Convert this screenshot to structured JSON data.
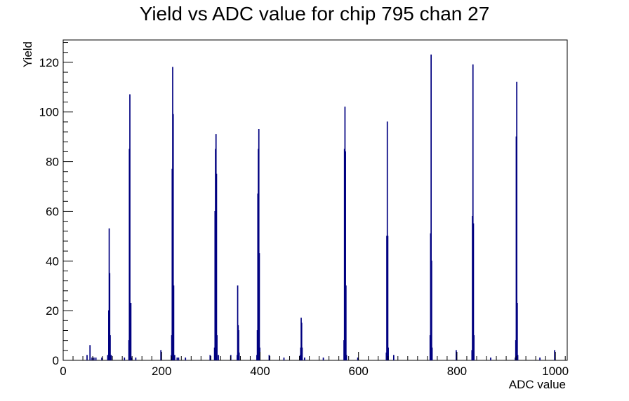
{
  "chart_data": {
    "type": "bar",
    "title": "Yield vs ADC value for chip 795 chan 27",
    "xlabel": "ADC value",
    "ylabel": "Yield",
    "xlim": [
      0,
      1024
    ],
    "ylim": [
      0,
      129
    ],
    "xticks": [
      0,
      200,
      400,
      600,
      800,
      1000
    ],
    "yticks": [
      0,
      20,
      40,
      60,
      80,
      100,
      120
    ],
    "grid": false,
    "legend": "none",
    "color": "#000080",
    "bins": [
      {
        "x": 48,
        "y": 2
      },
      {
        "x": 54,
        "y": 6
      },
      {
        "x": 58,
        "y": 1
      },
      {
        "x": 62,
        "y": 1
      },
      {
        "x": 66,
        "y": 1
      },
      {
        "x": 78,
        "y": 1
      },
      {
        "x": 90,
        "y": 2
      },
      {
        "x": 92,
        "y": 20
      },
      {
        "x": 93,
        "y": 53
      },
      {
        "x": 94,
        "y": 35
      },
      {
        "x": 95,
        "y": 10
      },
      {
        "x": 97,
        "y": 2
      },
      {
        "x": 124,
        "y": 1
      },
      {
        "x": 133,
        "y": 8
      },
      {
        "x": 134,
        "y": 85
      },
      {
        "x": 135,
        "y": 107
      },
      {
        "x": 136,
        "y": 15
      },
      {
        "x": 137,
        "y": 23
      },
      {
        "x": 139,
        "y": 1
      },
      {
        "x": 147,
        "y": 1
      },
      {
        "x": 198,
        "y": 4
      },
      {
        "x": 219,
        "y": 2
      },
      {
        "x": 220,
        "y": 10
      },
      {
        "x": 221,
        "y": 77
      },
      {
        "x": 222,
        "y": 118
      },
      {
        "x": 223,
        "y": 99
      },
      {
        "x": 224,
        "y": 30
      },
      {
        "x": 226,
        "y": 2
      },
      {
        "x": 231,
        "y": 1
      },
      {
        "x": 234,
        "y": 1
      },
      {
        "x": 248,
        "y": 1
      },
      {
        "x": 298,
        "y": 2
      },
      {
        "x": 307,
        "y": 5
      },
      {
        "x": 308,
        "y": 60
      },
      {
        "x": 309,
        "y": 85
      },
      {
        "x": 310,
        "y": 91
      },
      {
        "x": 311,
        "y": 75
      },
      {
        "x": 312,
        "y": 10
      },
      {
        "x": 315,
        "y": 2
      },
      {
        "x": 340,
        "y": 2
      },
      {
        "x": 353,
        "y": 2
      },
      {
        "x": 354,
        "y": 30
      },
      {
        "x": 355,
        "y": 14
      },
      {
        "x": 356,
        "y": 12
      },
      {
        "x": 357,
        "y": 3
      },
      {
        "x": 393,
        "y": 2
      },
      {
        "x": 394,
        "y": 12
      },
      {
        "x": 395,
        "y": 67
      },
      {
        "x": 396,
        "y": 85
      },
      {
        "x": 397,
        "y": 93
      },
      {
        "x": 398,
        "y": 43
      },
      {
        "x": 399,
        "y": 5
      },
      {
        "x": 418,
        "y": 2
      },
      {
        "x": 448,
        "y": 1
      },
      {
        "x": 481,
        "y": 2
      },
      {
        "x": 482,
        "y": 5
      },
      {
        "x": 483,
        "y": 17
      },
      {
        "x": 484,
        "y": 15
      },
      {
        "x": 485,
        "y": 5
      },
      {
        "x": 490,
        "y": 1
      },
      {
        "x": 528,
        "y": 1
      },
      {
        "x": 570,
        "y": 8
      },
      {
        "x": 571,
        "y": 85
      },
      {
        "x": 572,
        "y": 102
      },
      {
        "x": 573,
        "y": 84
      },
      {
        "x": 574,
        "y": 30
      },
      {
        "x": 575,
        "y": 2
      },
      {
        "x": 598,
        "y": 1
      },
      {
        "x": 656,
        "y": 3
      },
      {
        "x": 657,
        "y": 50
      },
      {
        "x": 658,
        "y": 96
      },
      {
        "x": 659,
        "y": 50
      },
      {
        "x": 660,
        "y": 5
      },
      {
        "x": 671,
        "y": 2
      },
      {
        "x": 745,
        "y": 10
      },
      {
        "x": 746,
        "y": 51
      },
      {
        "x": 747,
        "y": 123
      },
      {
        "x": 748,
        "y": 40
      },
      {
        "x": 749,
        "y": 5
      },
      {
        "x": 798,
        "y": 4
      },
      {
        "x": 830,
        "y": 4
      },
      {
        "x": 831,
        "y": 58
      },
      {
        "x": 832,
        "y": 119
      },
      {
        "x": 833,
        "y": 55
      },
      {
        "x": 834,
        "y": 10
      },
      {
        "x": 868,
        "y": 1
      },
      {
        "x": 918,
        "y": 1
      },
      {
        "x": 919,
        "y": 8
      },
      {
        "x": 920,
        "y": 90
      },
      {
        "x": 921,
        "y": 112
      },
      {
        "x": 922,
        "y": 23
      },
      {
        "x": 923,
        "y": 2
      },
      {
        "x": 968,
        "y": 1
      },
      {
        "x": 998,
        "y": 4
      }
    ]
  }
}
